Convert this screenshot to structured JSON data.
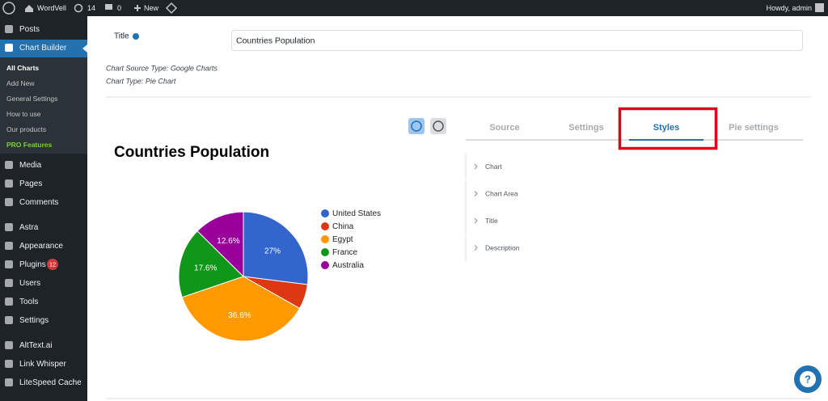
{
  "admin_bar": {
    "site": "WordVell",
    "updates": "14",
    "comments": "0",
    "new": "New",
    "howdy": "Howdy, admin"
  },
  "menu": [
    "Posts",
    "Chart Builder",
    "Media",
    "Pages",
    "Comments",
    "Astra",
    "Appearance",
    "Plugins",
    "Users",
    "Tools",
    "Settings",
    "AltText.ai",
    "Link Whisper",
    "LiteSpeed Cache"
  ],
  "plugins_badge": "12",
  "submenu": [
    "All Charts",
    "Add New",
    "General Settings",
    "How to use",
    "Our products",
    "PRO Features"
  ],
  "form": {
    "title_label": "Title",
    "title_value": "Countries Population",
    "source_type": "Chart Source Type: Google Charts",
    "chart_type": "Chart Type: Pie Chart"
  },
  "tabs": [
    "Source",
    "Settings",
    "Styles",
    "Pie settings"
  ],
  "sections": [
    "Chart",
    "Chart Area",
    "Title",
    "Description"
  ],
  "help": "?",
  "chart_data": {
    "type": "pie",
    "title": "Countries Population",
    "categories": [
      "United States",
      "China",
      "Egypt",
      "France",
      "Australia"
    ],
    "values": [
      27,
      6.2,
      36.6,
      17.6,
      12.6
    ],
    "value_labels": [
      "27%",
      null,
      "36.6%",
      "17.6%",
      "12.6%"
    ],
    "colors": [
      "#3366cc",
      "#dc3912",
      "#ff9900",
      "#109618",
      "#990099"
    ]
  }
}
